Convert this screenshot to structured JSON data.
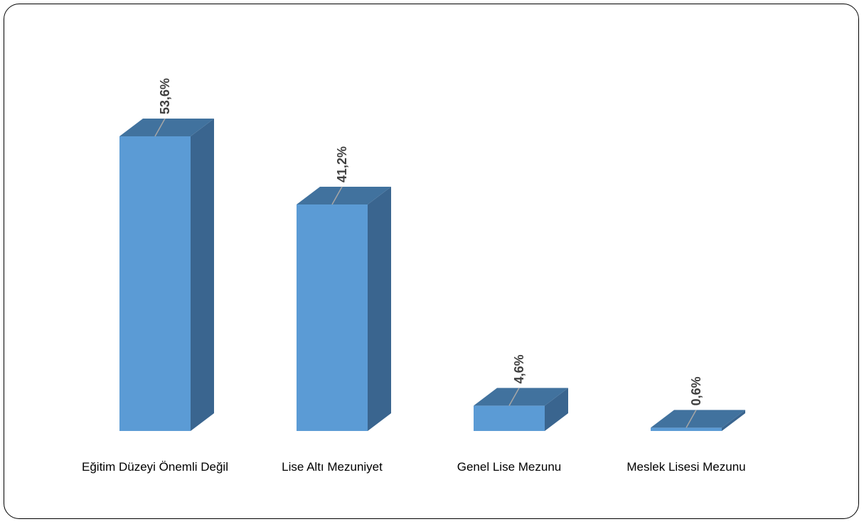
{
  "chart_data": {
    "type": "bar",
    "categories": [
      "Eğitim Düzeyi Önemli Değil",
      "Lise Altı Mezuniyet",
      "Genel Lise Mezunu",
      "Meslek Lisesi Mezunu"
    ],
    "series": [
      {
        "values": [
          53.6,
          41.2,
          4.6,
          0.6
        ]
      }
    ],
    "data_labels": [
      "53,6%",
      "41,2%",
      "4,6%",
      "0,6%"
    ],
    "ylim": [
      0,
      60
    ],
    "grid": false,
    "legend": "none",
    "style": "3d-column",
    "colors": {
      "front": "#5b9bd5",
      "top": "#41729e",
      "side": "#3a658f",
      "leader": "#a6a6a6"
    }
  }
}
